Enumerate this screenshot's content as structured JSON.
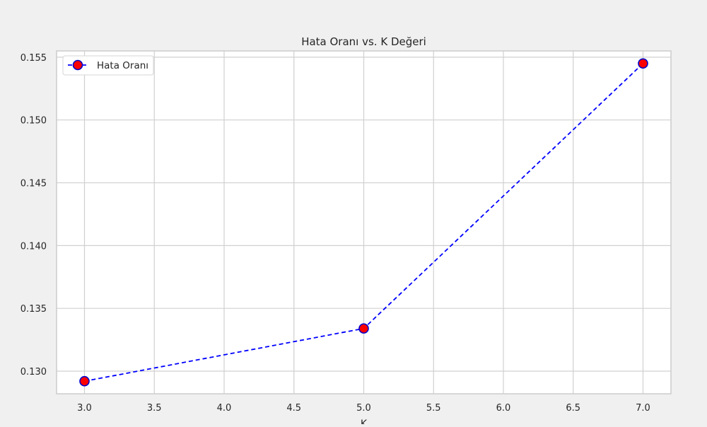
{
  "chart_data": {
    "type": "line",
    "title": "Hata Oranı vs. K Değeri",
    "xlabel": "K",
    "ylabel": "",
    "x": [
      3,
      5,
      7
    ],
    "series": [
      {
        "name": "Hata Oranı",
        "values": [
          0.1292,
          0.1334,
          0.1545
        ],
        "line_color": "#0000ff",
        "line_style": "dashed",
        "marker": "circle",
        "marker_face_color": "#ff0000",
        "marker_edge_color": "#0000cc"
      }
    ],
    "xlim": [
      2.8,
      7.2
    ],
    "ylim": [
      0.1282,
      0.1555
    ],
    "xticks": [
      3.0,
      3.5,
      4.0,
      4.5,
      5.0,
      5.5,
      6.0,
      6.5,
      7.0
    ],
    "xtick_labels": [
      "3.0",
      "3.5",
      "4.0",
      "4.5",
      "5.0",
      "5.5",
      "6.0",
      "6.5",
      "7.0"
    ],
    "yticks": [
      0.13,
      0.135,
      0.14,
      0.145,
      0.15,
      0.155
    ],
    "ytick_labels": [
      "0.130",
      "0.135",
      "0.140",
      "0.145",
      "0.150",
      "0.155"
    ],
    "grid": true,
    "legend_position": "top-left",
    "colors": {
      "figure_background": "#f0f0f0",
      "plot_background": "#ffffff",
      "grid": "#d0d0d0",
      "spine": "#cccccc"
    }
  }
}
